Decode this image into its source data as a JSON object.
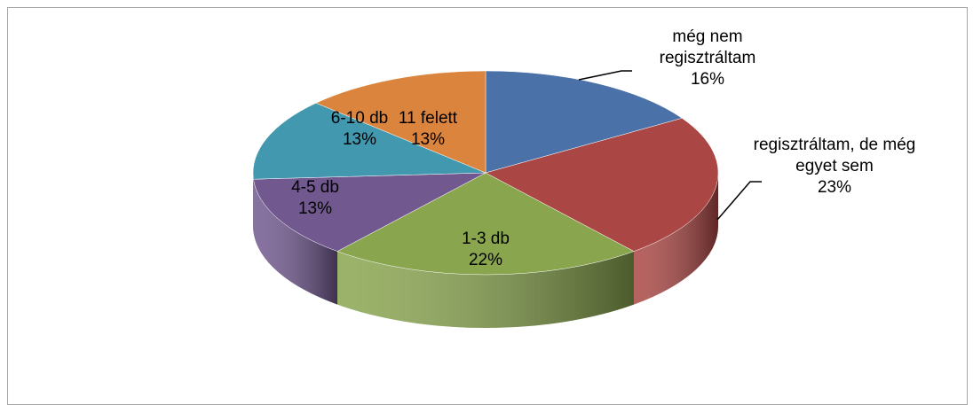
{
  "chart_data": {
    "type": "pie3d",
    "categories": [
      "még nem regisztráltam",
      "regisztráltam, de még egyet sem",
      "1-3 db",
      "4-5 db",
      "6-10 db",
      "11 felett"
    ],
    "values": [
      16,
      23,
      22,
      13,
      13,
      13
    ],
    "value_labels": [
      "16%",
      "23%",
      "22%",
      "13%",
      "13%",
      "13%"
    ],
    "colors": [
      "#4a72a8",
      "#aa4643",
      "#89a54e",
      "#71588f",
      "#4198af",
      "#db843d"
    ]
  }
}
